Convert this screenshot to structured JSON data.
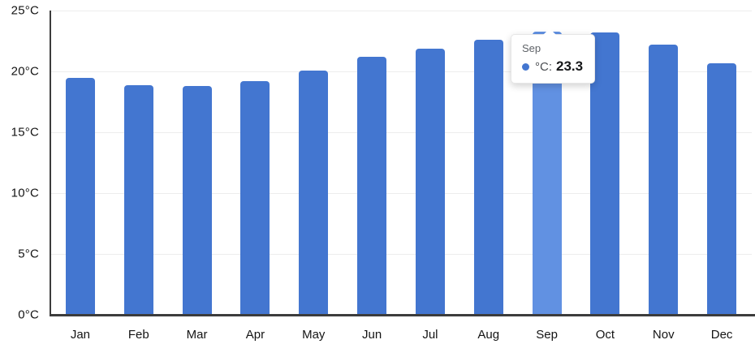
{
  "chart_data": {
    "type": "bar",
    "title": "",
    "categories": [
      "Jan",
      "Feb",
      "Mar",
      "Apr",
      "May",
      "Jun",
      "Jul",
      "Aug",
      "Sep",
      "Oct",
      "Nov",
      "Dec"
    ],
    "series": [
      {
        "name": "°C",
        "values": [
          19.5,
          18.9,
          18.8,
          19.2,
          20.1,
          21.2,
          21.9,
          22.6,
          23.3,
          23.2,
          22.2,
          20.7
        ]
      }
    ],
    "xlabel": "",
    "ylabel": "",
    "ylim": [
      0,
      25
    ],
    "yticks": [
      0,
      5,
      10,
      15,
      20,
      25
    ],
    "ytick_labels": [
      "0°C",
      "5°C",
      "10°C",
      "15°C",
      "20°C",
      "25°C"
    ],
    "grid": true,
    "legend_position": "none",
    "bar_color": "#4376d0",
    "highlight_color": "#6191e2",
    "highlighted_index": 8
  },
  "tooltip": {
    "title": "Sep",
    "series_label": "°C:",
    "value": "23.3",
    "marker_color": "#4376d0"
  }
}
